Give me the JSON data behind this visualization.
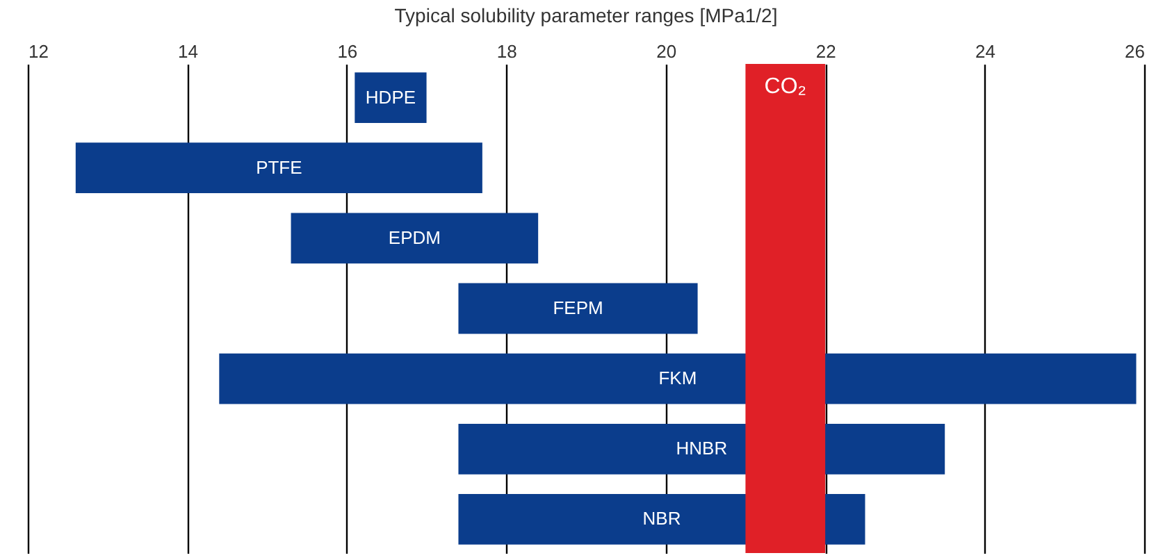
{
  "chart_data": {
    "type": "bar",
    "orientation": "horizontal",
    "title": "Typical solubility parameter ranges [MPa1/2]",
    "categories": [
      "HDPE",
      "PTFE",
      "EPDM",
      "FEPM",
      "FKM",
      "HNBR",
      "NBR"
    ],
    "base": [
      16.1,
      12.6,
      15.3,
      17.4,
      14.4,
      17.4,
      17.4
    ],
    "values": [
      0.9,
      5.1,
      3.1,
      3.0,
      11.5,
      6.1,
      5.1
    ],
    "color": "#0b3d8c",
    "xlim": [
      12,
      26
    ],
    "xticks": [
      12,
      14,
      16,
      18,
      20,
      22,
      24,
      26
    ],
    "grid": "x",
    "tick_labels": "x",
    "bands": [
      {
        "axis": "x",
        "from": 21.0,
        "to": 22.0,
        "label": "CO₂",
        "color": "#e02027"
      }
    ]
  }
}
